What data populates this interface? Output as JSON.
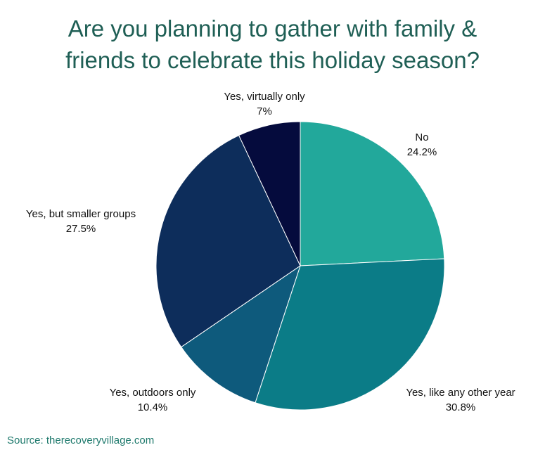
{
  "title": {
    "line1": "Are you planning to gather with family &",
    "line2": "friends to celebrate this holiday season?"
  },
  "chart_data": {
    "type": "pie",
    "title": "Are you planning to gather with family & friends to celebrate this holiday season?",
    "slices": [
      {
        "label": "No",
        "value": 24.2,
        "display": "24.2%",
        "color": "#22a89b"
      },
      {
        "label": "Yes, like any other year",
        "value": 30.8,
        "display": "30.8%",
        "color": "#0b7c87"
      },
      {
        "label": "Yes, outdoors only",
        "value": 10.4,
        "display": "10.4%",
        "color": "#0e5a7c"
      },
      {
        "label": "Yes, but smaller groups",
        "value": 27.5,
        "display": "27.5%",
        "color": "#0d2d5b"
      },
      {
        "label": "Yes, virtually only",
        "value": 7,
        "display": "7%",
        "color": "#050b3d"
      }
    ],
    "start": "12 o'clock",
    "direction": "clockwise",
    "legend": "none"
  },
  "source": "Source: therecoveryvillage.com"
}
